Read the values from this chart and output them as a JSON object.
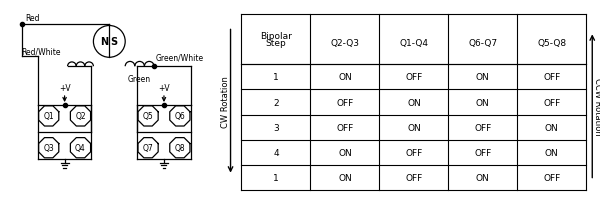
{
  "background_color": "#ffffff",
  "table": {
    "col_headers_line1": [
      "Bipolar",
      "",
      "",
      "",
      ""
    ],
    "col_headers_line2": [
      "Step",
      "Q2-Q3",
      "Q1-Q4",
      "Q6-Q7",
      "Q5-Q8"
    ],
    "rows": [
      [
        "1",
        "ON",
        "OFF",
        "ON",
        "OFF"
      ],
      [
        "2",
        "OFF",
        "ON",
        "ON",
        "OFF"
      ],
      [
        "3",
        "OFF",
        "ON",
        "OFF",
        "ON"
      ],
      [
        "4",
        "ON",
        "OFF",
        "OFF",
        "ON"
      ],
      [
        "1",
        "ON",
        "OFF",
        "ON",
        "OFF"
      ]
    ]
  },
  "cw_label": "CW Rotation",
  "ccw_label": "CCW Rotation",
  "wire_labels": [
    "Red",
    "Red/White",
    "Green/White",
    "Green"
  ],
  "transistor_labels": [
    "Q1",
    "Q2",
    "Q3",
    "Q4",
    "Q5",
    "Q6",
    "Q7",
    "Q8"
  ],
  "vplus_label": "+V",
  "motor_labels": [
    "N",
    "S"
  ]
}
